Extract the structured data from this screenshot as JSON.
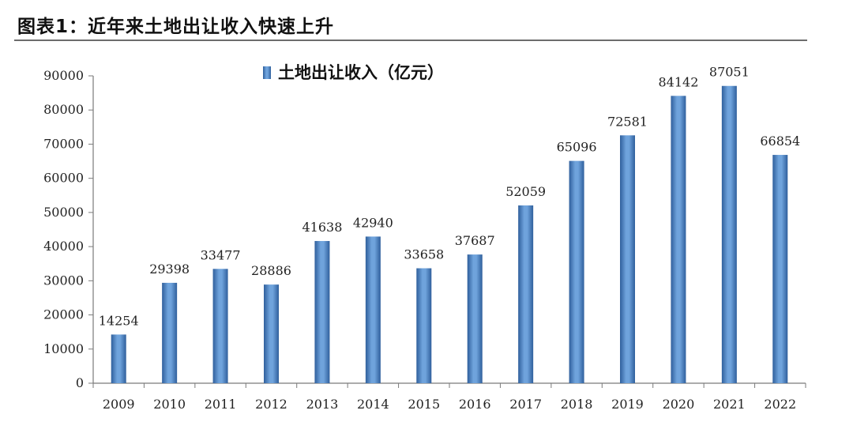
{
  "figure": {
    "title": "图表1：近年来土地出让收入快速上升"
  },
  "chart_data": {
    "type": "bar",
    "categories": [
      "2009",
      "2010",
      "2011",
      "2012",
      "2013",
      "2014",
      "2015",
      "2016",
      "2017",
      "2018",
      "2019",
      "2020",
      "2021",
      "2022"
    ],
    "series": [
      {
        "name": "土地出让收入（亿元）",
        "values": [
          14254,
          29398,
          33477,
          28886,
          41638,
          42940,
          33658,
          37687,
          52059,
          65096,
          72581,
          84142,
          87051,
          66854
        ],
        "color": "#4f86c6"
      }
    ],
    "data_labels": [
      "14254",
      "29398",
      "33477",
      "28886",
      "41638",
      "42940",
      "33658",
      "37687",
      "52059",
      "65096",
      "72581",
      "84142",
      "87051",
      "66854"
    ],
    "ylim": [
      0,
      90000
    ],
    "yticks": [
      "0",
      "10000",
      "20000",
      "30000",
      "40000",
      "50000",
      "60000",
      "70000",
      "80000",
      "90000"
    ],
    "legend_position": "top-center",
    "grid": false
  }
}
